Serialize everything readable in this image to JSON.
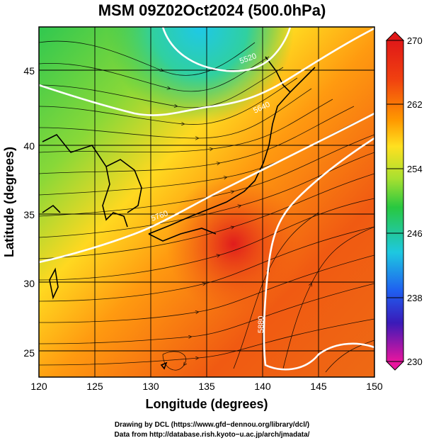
{
  "title": "MSM 09Z02Oct2024 (500.0hPa)",
  "axes": {
    "xlabel": "Longitude (degrees)",
    "ylabel": "Latitude  (degrees)",
    "xticks": [
      "120",
      "125",
      "130",
      "135",
      "140",
      "145",
      "150"
    ],
    "yticks": [
      "25",
      "30",
      "35",
      "40",
      "45"
    ],
    "xrange": [
      120,
      150
    ],
    "yrange": [
      22.4,
      47.6
    ]
  },
  "colorbar": {
    "labels": [
      "270",
      "262",
      "254",
      "246",
      "238",
      "230"
    ],
    "range": [
      230,
      270
    ],
    "colors": [
      "#e8159e",
      "#3a1ab8",
      "#1f5ff0",
      "#1ec8e0",
      "#28c840",
      "#a8e030",
      "#ffe020",
      "#ff9a00",
      "#f04010",
      "#e01818"
    ]
  },
  "contours": {
    "labels": [
      "5520",
      "5640",
      "5760",
      "5880"
    ]
  },
  "footer": {
    "line1": "Drawing by DCL (https://www.gfd−dennou.org/library/dcl/)",
    "line2": "Data from http://database.rish.kyoto−u.ac.jp/arch/jmadata/"
  }
}
